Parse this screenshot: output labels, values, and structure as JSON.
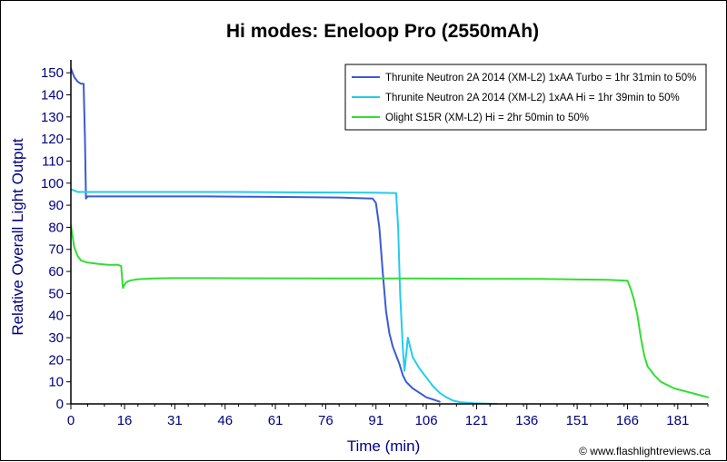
{
  "chart_data": {
    "type": "line",
    "title": "Hi modes: Eneloop Pro (2550mAh)",
    "xlabel": "Time (min)",
    "ylabel": "Relative Overall Light Output",
    "xlim": [
      0,
      190
    ],
    "ylim": [
      0,
      155
    ],
    "x_ticks": [
      0,
      16,
      31,
      46,
      61,
      76,
      91,
      106,
      121,
      136,
      151,
      166,
      181
    ],
    "y_ticks": [
      0,
      10,
      20,
      30,
      40,
      50,
      60,
      70,
      80,
      90,
      100,
      110,
      120,
      130,
      140,
      150
    ],
    "grid": false,
    "legend_position": "top-right",
    "credit": "© www.flashlightreviews.ca",
    "colors": {
      "axis": "#000000",
      "tick_label": "#000080",
      "axis_label": "#000080",
      "title": "#000000"
    },
    "series": [
      {
        "name": "Thrunite Neutron 2A 2014 (XM-L2) 1xAA Turbo = 1hr 31min to 50%",
        "color": "#3A5BD6",
        "x": [
          0,
          1,
          2,
          3,
          3.8,
          4.2,
          4.5,
          5,
          10,
          20,
          40,
          60,
          80,
          90,
          91,
          92,
          93,
          94,
          95,
          96,
          97,
          98,
          99,
          100,
          102,
          104,
          106,
          108,
          110
        ],
        "y": [
          152,
          148,
          146,
          145,
          145,
          120,
          93,
          94,
          94,
          94,
          94,
          93.8,
          93.5,
          93,
          91,
          80,
          60,
          42,
          32,
          26,
          22,
          18,
          13,
          10,
          7,
          5,
          3,
          2,
          1
        ]
      },
      {
        "name": "Thrunite Neutron 2A 2014 (XM-L2) 1xAA Hi = 1hr 39min to 50%",
        "color": "#22CCEE",
        "x": [
          0,
          0.5,
          2,
          10,
          30,
          50,
          70,
          90,
          97,
          97.6,
          98.2,
          99,
          99.5,
          100,
          100.5,
          101,
          102,
          104,
          106,
          108,
          110,
          112,
          114,
          116,
          120,
          124,
          127
        ],
        "y": [
          97,
          97,
          96,
          96,
          96,
          96,
          95.8,
          95.7,
          95.5,
          80,
          50,
          25,
          15,
          22,
          30,
          27,
          21,
          16,
          12,
          8,
          5,
          3,
          1.5,
          0.8,
          0.3,
          0.1,
          0
        ]
      },
      {
        "name": "Olight S15R (XM-L2) Hi = 2hr 50min to 50%",
        "color": "#33DD33",
        "x": [
          0,
          0.5,
          1,
          2,
          3,
          5,
          8,
          11,
          14,
          15,
          15.5,
          16,
          16.5,
          17,
          18,
          20,
          25,
          30,
          40,
          60,
          80,
          100,
          120,
          140,
          160,
          166,
          167,
          168,
          169,
          170,
          171,
          172,
          173,
          174,
          176,
          180,
          185,
          190
        ],
        "y": [
          81,
          76,
          71,
          67,
          65,
          64,
          63.5,
          63,
          63,
          62.5,
          52.5,
          54,
          55,
          55.5,
          56,
          56.5,
          56.8,
          57,
          57,
          56.9,
          56.8,
          56.8,
          56.7,
          56.6,
          56.2,
          55.8,
          52,
          47,
          40,
          30,
          22,
          17,
          15,
          13,
          10,
          7,
          5,
          3
        ]
      }
    ]
  }
}
